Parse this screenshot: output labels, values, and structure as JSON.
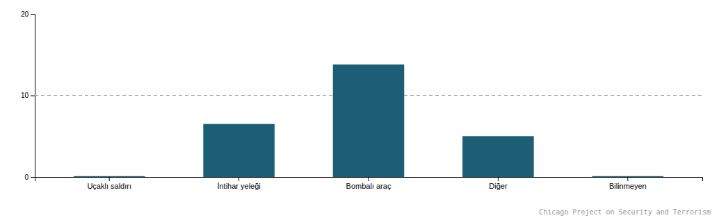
{
  "chart_data": {
    "type": "bar",
    "categories": [
      "Uçaklı saldırı",
      "İntihar yeleği",
      "Bombalı araç",
      "Diğer",
      "Bilinmeyen"
    ],
    "values": [
      0.1,
      6.5,
      13.8,
      5.0,
      0.1
    ],
    "color": "#1b5e75",
    "ylim": [
      0,
      20
    ],
    "yticks": [
      0,
      10,
      20
    ],
    "grid": false,
    "reference_line": {
      "y": 10,
      "line_style": "dashed"
    },
    "annotations": [
      "Chicago Project on Security and Terrorism"
    ]
  }
}
